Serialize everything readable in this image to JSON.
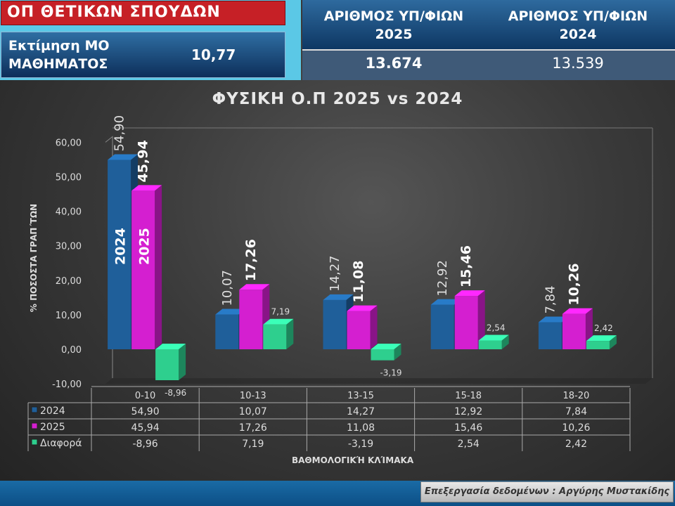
{
  "header": {
    "subject": "ΟΠ ΘΕΤΙΚΩΝ ΣΠΟΥΔΩΝ",
    "estimate_label_1": "Εκτίμηση ΜΟ",
    "estimate_label_2": "ΜΑΘΗΜΑΤΟΣ",
    "estimate_value": "10,77",
    "count_2025_label_1": "ΑΡΙΘΜΟΣ ΥΠ/ΦΙΩΝ",
    "count_2025_label_2": "2025",
    "count_2024_label_1": "ΑΡΙΘΜΟΣ ΥΠ/ΦΙΩΝ",
    "count_2024_label_2": "2024",
    "count_2025": "13.674",
    "count_2024": "13.539"
  },
  "footer": {
    "credit": "Επεξεργασία δεδομένων : Αργύρης Μυστακίδης"
  },
  "colors": {
    "2024": "#1f5f9a",
    "2025": "#d41fd0",
    "diff": "#2ecf8e"
  },
  "chart_data": {
    "type": "bar",
    "title": "ΦΥΣΙΚΗ Ο.Π 2025 vs 2024",
    "xlabel": "ΒΑΘΜΟΛΟΓΙΚΉ ΚΛΊΜΑΚΑ",
    "ylabel": "% ΠΟΣΟΣΤΑ ΓΡΑΠ΄ΤΩΝ",
    "ylim": [
      -10,
      60
    ],
    "yticks": [
      "-10,00",
      "0,00",
      "10,00",
      "20,00",
      "30,00",
      "40,00",
      "50,00",
      "60,00"
    ],
    "categories": [
      "0-10",
      "10-13",
      "13-15",
      "15-18",
      "18-20"
    ],
    "series": [
      {
        "name": "2024",
        "values": [
          54.9,
          10.07,
          14.27,
          12.92,
          7.84
        ],
        "labels": [
          "54,90",
          "10,07",
          "14,27",
          "12,92",
          "7,84"
        ]
      },
      {
        "name": "2025",
        "values": [
          45.94,
          17.26,
          11.08,
          15.46,
          10.26
        ],
        "labels": [
          "45,94",
          "17,26",
          "11,08",
          "15,46",
          "10,26"
        ]
      },
      {
        "name": "Διαφορά",
        "values": [
          -8.96,
          7.19,
          -3.19,
          2.54,
          2.42
        ],
        "labels": [
          "-8,96",
          "7,19",
          "-3,19",
          "2,54",
          "2,42"
        ]
      }
    ],
    "in_bar_labels": [
      "2024",
      "2025"
    ],
    "legend": "data-table",
    "grid": false
  }
}
